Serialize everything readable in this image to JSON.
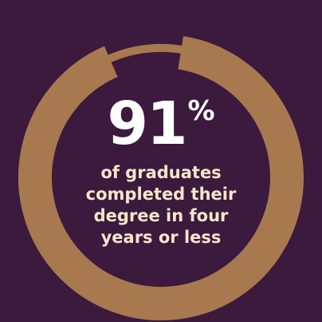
{
  "colors": {
    "background": "#3b1a3e",
    "ring": "#a8794f",
    "number_text": "#ffffff",
    "caption_text": "#f7e6c8"
  },
  "chart_data": {
    "type": "pie",
    "variant": "donut",
    "values": [
      91,
      9
    ],
    "value_unit": "%"
  },
  "stat": {
    "value": "91",
    "unit": "%",
    "caption_lines": [
      "of graduates",
      "completed their",
      "degree in four",
      "years or less"
    ]
  }
}
